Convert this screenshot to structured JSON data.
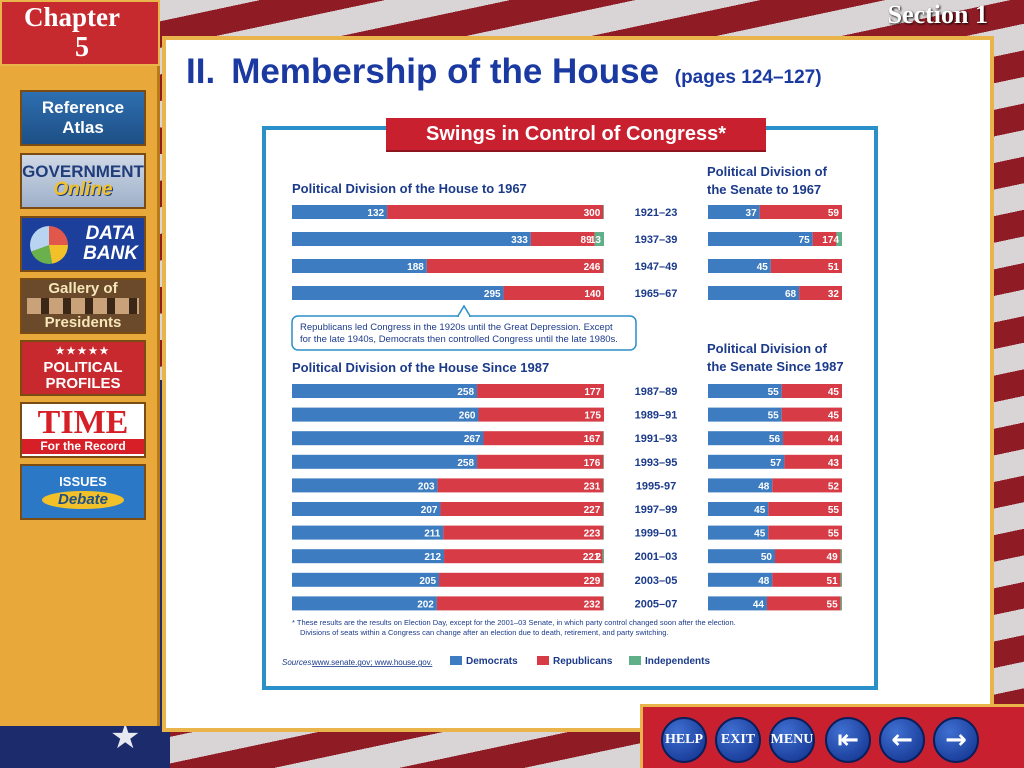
{
  "header": {
    "chapter_word": "Chapter",
    "chapter_number": "5",
    "section_label": "Section 1"
  },
  "sidebar": {
    "reference_atlas": {
      "line1": "Reference",
      "line2": "Atlas"
    },
    "government_online": {
      "line1": "GOVERNMENT",
      "line2": "Online"
    },
    "data_bank": {
      "line1": "DATA",
      "line2": "BANK"
    },
    "gallery": {
      "line1": "Gallery of",
      "line2": "Presidents"
    },
    "political_profiles": {
      "line1": "POLITICAL",
      "line2": "PROFILES"
    },
    "time": {
      "line1": "TIME",
      "line2": "For the Record"
    },
    "issues": {
      "line1": "ISSUES",
      "line2": "Debate"
    }
  },
  "page": {
    "roman": "II.",
    "title": "Membership of the House",
    "pages": "(pages 124–127)"
  },
  "nav": {
    "help": "HELP",
    "exit": "EXIT",
    "menu": "MENU"
  },
  "colors": {
    "democrats": "#3d7cc0",
    "republicans": "#d63b46",
    "independents": "#5fb089",
    "title_blue": "#1b3aa1"
  },
  "chart_data": {
    "type": "bar",
    "title": "Swings in Control of Congress*",
    "series_names": [
      "Democrats",
      "Republicans",
      "Independents"
    ],
    "house_pre_title": "Political Division of the House to 1967",
    "senate_pre_title_1": "Political Division of",
    "senate_pre_title_2": "the Senate to 1967",
    "house_post_title": "Political Division of the House Since 1987",
    "senate_post_title_1": "Political Division of",
    "senate_post_title_2": "the Senate Since 1987",
    "note_lines": [
      "Republicans led Congress in the 1920s until the Great Depression. Except",
      "for the late 1940s, Democrats then controlled Congress until the late 1980s."
    ],
    "pre_1967": [
      {
        "congress": "1921–23",
        "house": [
          132,
          300,
          1
        ],
        "senate": [
          37,
          59,
          0
        ]
      },
      {
        "congress": "1937–39",
        "house": [
          333,
          89,
          13
        ],
        "senate": [
          75,
          17,
          4
        ]
      },
      {
        "congress": "1947–49",
        "house": [
          188,
          246,
          1
        ],
        "senate": [
          45,
          51,
          0
        ]
      },
      {
        "congress": "1965–67",
        "house": [
          295,
          140,
          0
        ],
        "senate": [
          68,
          32,
          0
        ]
      }
    ],
    "since_1987": [
      {
        "congress": "1987–89",
        "house": [
          258,
          177,
          0
        ],
        "senate": [
          55,
          45,
          0
        ]
      },
      {
        "congress": "1989–91",
        "house": [
          260,
          175,
          0
        ],
        "senate": [
          55,
          45,
          0
        ]
      },
      {
        "congress": "1991–93",
        "house": [
          267,
          167,
          1
        ],
        "senate": [
          56,
          44,
          0
        ]
      },
      {
        "congress": "1993–95",
        "house": [
          258,
          176,
          1
        ],
        "senate": [
          57,
          43,
          0
        ]
      },
      {
        "congress": "1995-97",
        "house": [
          203,
          231,
          1
        ],
        "senate": [
          48,
          52,
          0
        ]
      },
      {
        "congress": "1997–99",
        "house": [
          207,
          227,
          1
        ],
        "senate": [
          45,
          55,
          0
        ]
      },
      {
        "congress": "1999–01",
        "house": [
          211,
          223,
          1
        ],
        "senate": [
          45,
          55,
          0
        ]
      },
      {
        "congress": "2001–03",
        "house": [
          212,
          221,
          2
        ],
        "senate": [
          50,
          49,
          1
        ]
      },
      {
        "congress": "2003–05",
        "house": [
          205,
          229,
          1
        ],
        "senate": [
          48,
          51,
          1
        ]
      },
      {
        "congress": "2005–07",
        "house": [
          202,
          232,
          1
        ],
        "senate": [
          44,
          55,
          1
        ]
      }
    ],
    "footnote_lines": [
      "* These results are the results on Election Day, except for the 2001–03 Senate, in which party control changed soon after the election.",
      "Divisions of seats within a Congress can change after an election due to death, retirement, and party switching."
    ],
    "sources_label": "Sources:",
    "sources": "www.senate.gov; www.house.gov."
  }
}
